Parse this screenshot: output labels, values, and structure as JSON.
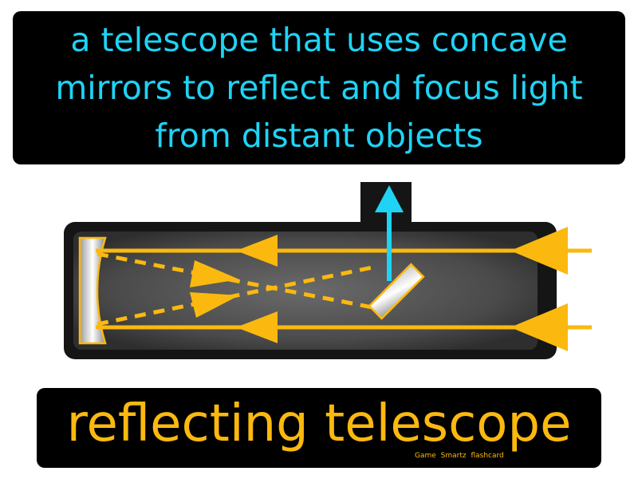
{
  "definition": "a telescope that uses concave mirrors to reflect and focus light from distant objects",
  "term": "reflecting telescope",
  "brand": "Game Smartz flashcard",
  "colors": {
    "definition_text": "#1fd3f5",
    "term_text": "#fbb90f",
    "light_ray": "#fbb90f",
    "reflected_ray": "#1fd3f5",
    "tube": "#555555",
    "box_background": "#000000"
  },
  "diagram": {
    "icons": [
      "concave-mirror-icon",
      "flat-mirror-icon",
      "light-ray-arrow-icon",
      "eyepiece-icon"
    ]
  }
}
